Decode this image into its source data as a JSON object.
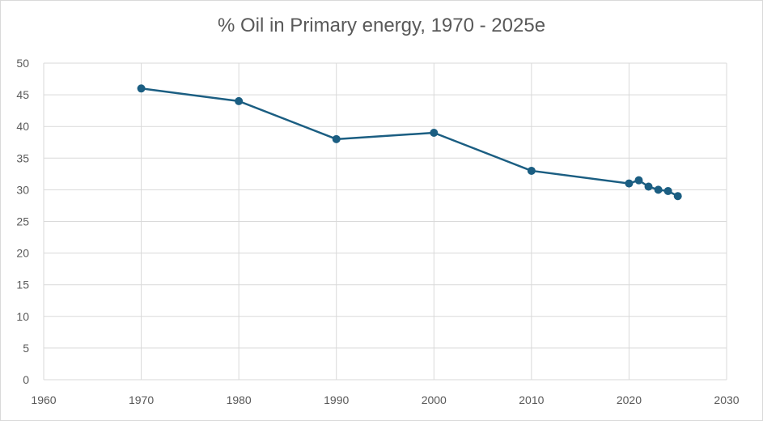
{
  "chart_data": {
    "type": "scatter",
    "title": "% Oil in Primary energy, 1970 - 2025e",
    "xlabel": "",
    "ylabel": "",
    "xlim": [
      1960,
      2030
    ],
    "ylim": [
      0,
      50
    ],
    "x_ticks": [
      1960,
      1970,
      1980,
      1990,
      2000,
      2010,
      2020,
      2030
    ],
    "y_ticks": [
      0,
      5,
      10,
      15,
      20,
      25,
      30,
      35,
      40,
      45,
      50
    ],
    "grid": true,
    "legend": "none",
    "series": [
      {
        "color": "#1b5e82",
        "markers": true,
        "connected": true,
        "x": [
          1970,
          1980,
          1990,
          2000,
          2010,
          2020,
          2021,
          2022,
          2023,
          2024,
          2025
        ],
        "y": [
          46,
          44,
          38,
          39,
          33,
          31,
          31.5,
          30.5,
          30,
          29.8,
          29
        ]
      }
    ]
  }
}
